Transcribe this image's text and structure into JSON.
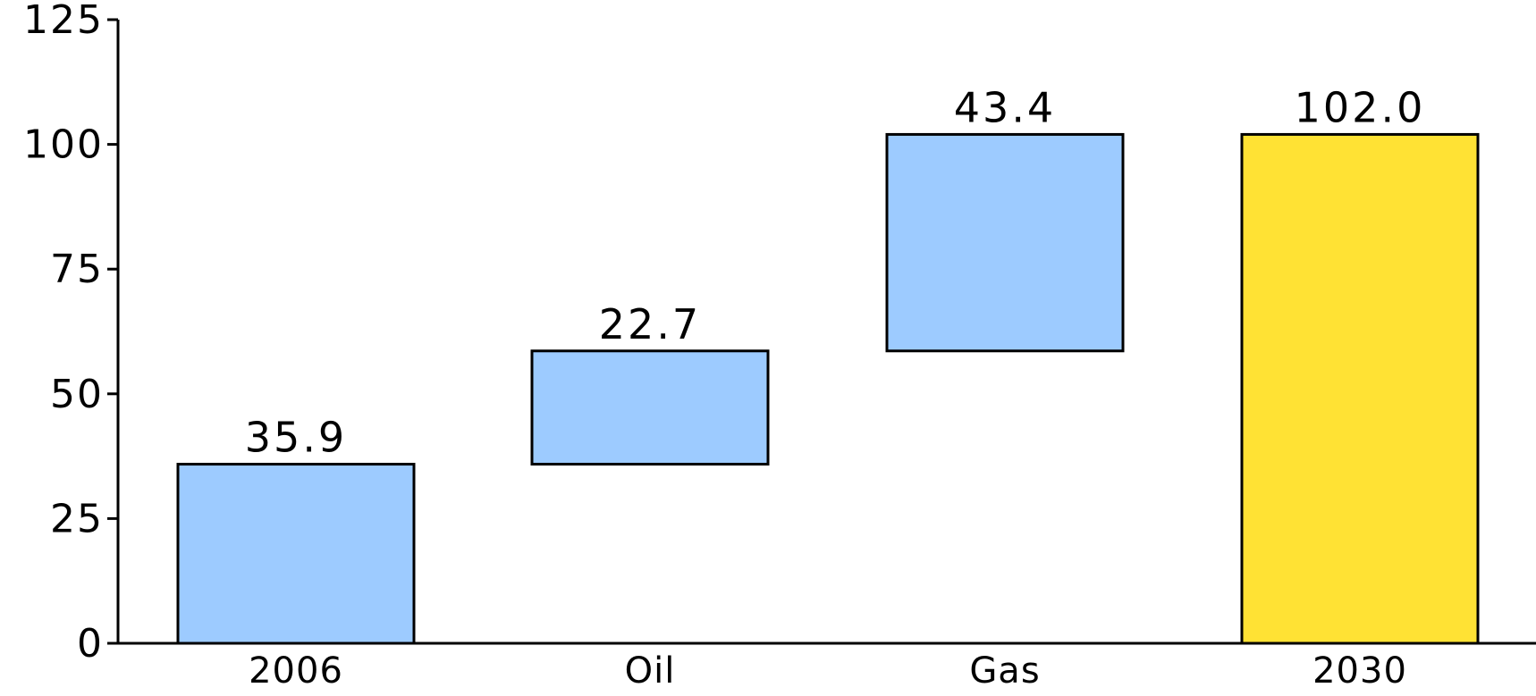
{
  "chart_data": {
    "type": "bar",
    "subtype": "waterfall",
    "categories": [
      "2006",
      "Oil",
      "Gas",
      "2030"
    ],
    "values": [
      35.9,
      22.7,
      43.4,
      102.0
    ],
    "bar_bases": [
      0,
      35.9,
      58.6,
      0
    ],
    "data_labels": [
      "35.9",
      "22.7",
      "43.4",
      "102.0"
    ],
    "ylim": [
      0,
      125
    ],
    "yticks": [
      0,
      25,
      50,
      75,
      100,
      125
    ],
    "ytick_labels": [
      "0",
      "25",
      "50",
      "75",
      "100",
      "125"
    ],
    "grid": false,
    "legend": "none",
    "colors": {
      "increment": "#9dcbff",
      "total": "#ffe234",
      "outline": "#000000"
    },
    "bar_roles": [
      "increment",
      "increment",
      "increment",
      "total"
    ]
  }
}
